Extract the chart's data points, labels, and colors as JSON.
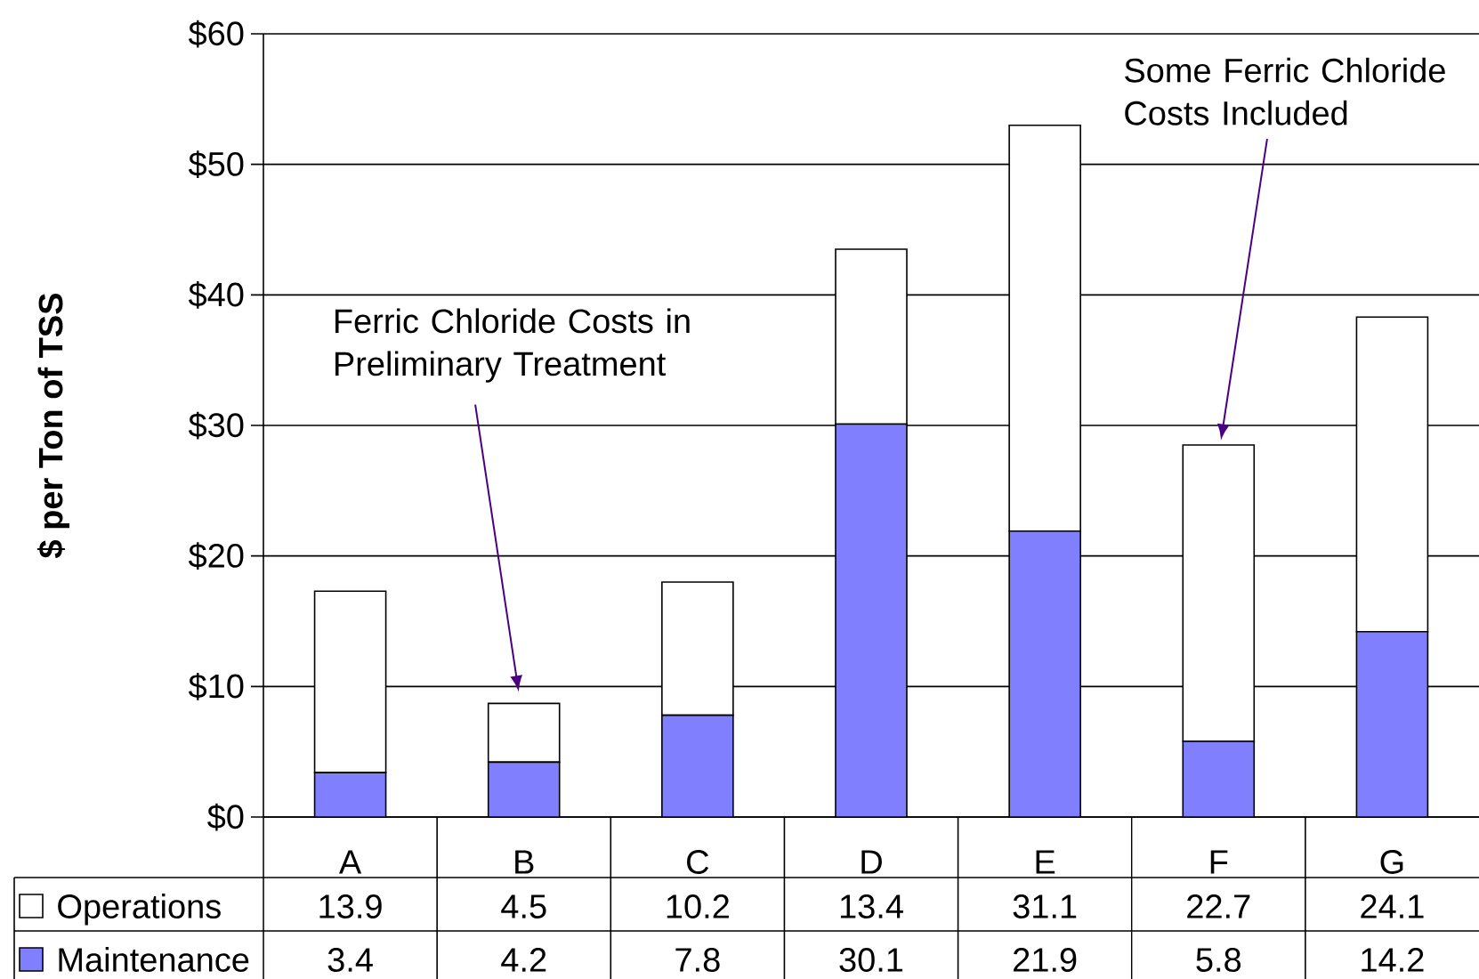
{
  "chart_data": {
    "type": "bar",
    "stacked": true,
    "ylabel": "$ per Ton of TSS",
    "categories": [
      "A",
      "B",
      "C",
      "D",
      "E",
      "F",
      "G"
    ],
    "series": [
      {
        "name": "Maintenance",
        "color": "#8080ff",
        "values": [
          3.4,
          4.2,
          7.8,
          30.1,
          21.9,
          5.8,
          14.2
        ]
      },
      {
        "name": "Operations",
        "color": "#ffffff",
        "values": [
          13.9,
          4.5,
          10.2,
          13.4,
          31.1,
          22.7,
          24.1
        ]
      }
    ],
    "ylim": [
      0,
      60
    ],
    "yticks": [
      {
        "value": 0,
        "label": "$0"
      },
      {
        "value": 10,
        "label": "$10"
      },
      {
        "value": 20,
        "label": "$20"
      },
      {
        "value": 30,
        "label": "$30"
      },
      {
        "value": 40,
        "label": "$40"
      },
      {
        "value": 50,
        "label": "$50"
      },
      {
        "value": 60,
        "label": "$60"
      }
    ],
    "grid": "y",
    "legend": "bottom",
    "data_labels": true,
    "annotations": [
      "Ferric Chloride Costs in Preliminary Treatment",
      "Some Ferric Chloride Costs Included"
    ]
  }
}
